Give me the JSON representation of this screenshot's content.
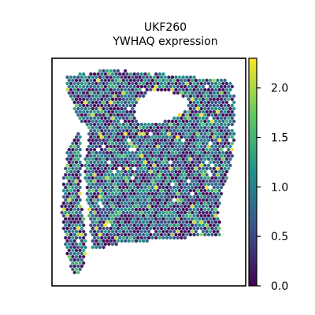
{
  "chart_data": {
    "type": "scatter",
    "title_lines": [
      "UKF260",
      "YWHAQ expression"
    ],
    "xlabel": "",
    "ylabel": "",
    "marker": "hexagon",
    "colormap": "viridis",
    "colorbar": {
      "range": [
        0.0,
        2.3
      ],
      "ticks": [
        0.0,
        0.5,
        1.0,
        1.5,
        2.0
      ],
      "tick_labels": [
        "0.0",
        "0.5",
        "1.0",
        "1.5",
        "2.0"
      ]
    },
    "value_distribution": {
      "min": 0.0,
      "max": 2.3,
      "typical": [
        0.5,
        1.0
      ]
    },
    "spatial_outline": {
      "main_tissue": "irregular quadrilateral, wider at top",
      "left_strip": "separate narrow strip on left edge",
      "hole": "empty region near upper-right center"
    }
  },
  "colors": {
    "viridis_stops": [
      "#440154",
      "#3b528b",
      "#21918c",
      "#5ec962",
      "#fde725"
    ],
    "axes": "#000000",
    "background": "#ffffff"
  }
}
